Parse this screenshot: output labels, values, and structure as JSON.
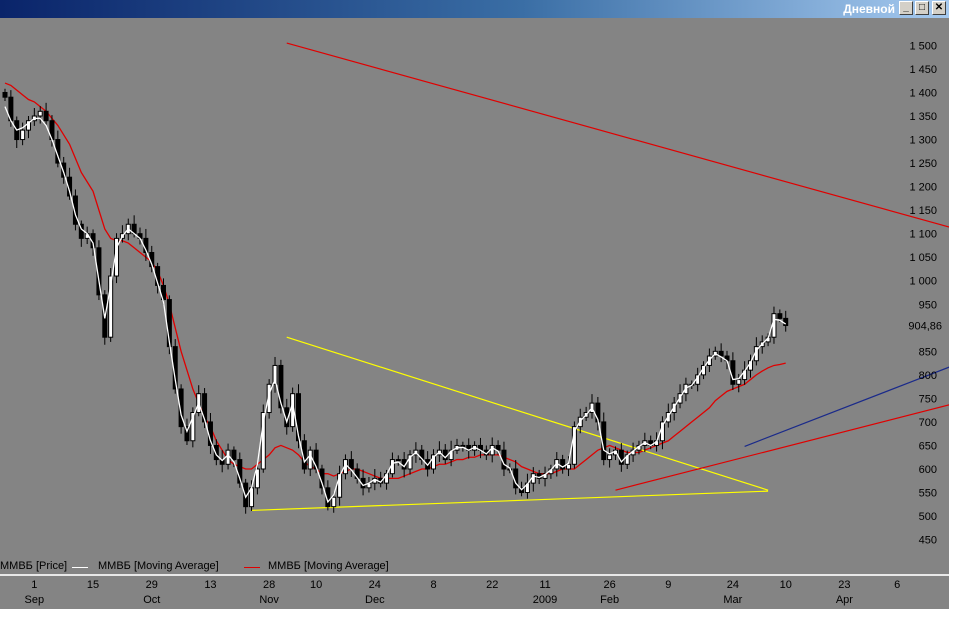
{
  "window": {
    "title": "Дневной",
    "buttons": {
      "minimize": "_",
      "maximize": "□",
      "close": "✕"
    }
  },
  "legend": {
    "price": "ММВБ [Price]",
    "ma_white": "ММВБ [Moving Average]",
    "ma_red": "ММВБ [Moving Average]"
  },
  "colors": {
    "background": "#848484",
    "ma_fast": "#ffffff",
    "ma_slow": "#e00000",
    "trend_yellow": "#ffff00",
    "trend_red": "#e00000",
    "trend_blue": "#1a2a8a"
  },
  "chart_data": {
    "type": "candlestick",
    "ylim": [
      430,
      1520
    ],
    "y_ticks": [
      "1 500",
      "1 450",
      "1 400",
      "1 350",
      "1 300",
      "1 250",
      "1 200",
      "1 150",
      "1 100",
      "1 050",
      "1 000",
      "950",
      "850",
      "800",
      "750",
      "700",
      "650",
      "600",
      "550",
      "500",
      "450"
    ],
    "y_tick_values": [
      1500,
      1450,
      1400,
      1350,
      1300,
      1250,
      1200,
      1150,
      1100,
      1050,
      1000,
      950,
      850,
      800,
      750,
      700,
      650,
      600,
      550,
      500,
      450
    ],
    "last_price_label": "904,86",
    "last_price": 904.86,
    "x_ticks": [
      {
        "day": "1",
        "month": "Sep",
        "i": 5
      },
      {
        "day": "15",
        "month": "",
        "i": 15
      },
      {
        "day": "29",
        "month": "Oct",
        "i": 25
      },
      {
        "day": "13",
        "month": "",
        "i": 35
      },
      {
        "day": "28",
        "month": "Nov",
        "i": 45
      },
      {
        "day": "10",
        "month": "",
        "i": 53
      },
      {
        "day": "24",
        "month": "Dec",
        "i": 63
      },
      {
        "day": "8",
        "month": "",
        "i": 73
      },
      {
        "day": "22",
        "month": "",
        "i": 83
      },
      {
        "day": "11",
        "month": "2009",
        "i": 92
      },
      {
        "day": "26",
        "month": "Feb",
        "i": 103
      },
      {
        "day": "9",
        "month": "",
        "i": 113
      },
      {
        "day": "24",
        "month": "Mar",
        "i": 124
      },
      {
        "day": "10",
        "month": "",
        "i": 133
      },
      {
        "day": "23",
        "month": "Apr",
        "i": 143
      },
      {
        "day": "6",
        "month": "",
        "i": 152
      }
    ],
    "close": [
      1390,
      1340,
      1300,
      1320,
      1340,
      1350,
      1360,
      1340,
      1300,
      1250,
      1220,
      1180,
      1120,
      1090,
      1100,
      1070,
      970,
      880,
      1010,
      1090,
      1100,
      1120,
      1100,
      1090,
      1060,
      1030,
      990,
      960,
      860,
      770,
      690,
      660,
      720,
      760,
      700,
      650,
      620,
      610,
      640,
      620,
      570,
      520,
      560,
      600,
      720,
      780,
      820,
      730,
      690,
      760,
      660,
      600,
      640,
      600,
      560,
      520,
      540,
      590,
      620,
      600,
      580,
      560,
      570,
      580,
      570,
      590,
      620,
      620,
      600,
      630,
      640,
      620,
      600,
      630,
      640,
      620,
      640,
      650,
      650,
      640,
      650,
      640,
      630,
      650,
      640,
      600,
      600,
      560,
      550,
      570,
      590,
      580,
      590,
      600,
      620,
      600,
      610,
      690,
      710,
      720,
      740,
      700,
      620,
      630,
      640,
      610,
      630,
      640,
      650,
      660,
      650,
      660,
      700,
      720,
      740,
      760,
      780,
      780,
      800,
      820,
      840,
      850,
      840,
      830,
      780,
      790,
      810,
      830,
      860,
      870,
      880,
      930,
      920,
      904.86
    ],
    "ma_slow": [
      1420,
      1415,
      1405,
      1395,
      1385,
      1380,
      1370,
      1360,
      1345,
      1330,
      1310,
      1290,
      1260,
      1230,
      1210,
      1190,
      1150,
      1110,
      1090,
      1085,
      1085,
      1080,
      1070,
      1060,
      1050,
      1040,
      1020,
      990,
      950,
      900,
      850,
      810,
      770,
      740,
      710,
      690,
      660,
      640,
      620,
      610,
      605,
      600,
      600,
      610,
      620,
      630,
      645,
      650,
      645,
      640,
      630,
      615,
      605,
      600,
      590,
      590,
      585,
      590,
      595,
      600,
      600,
      595,
      590,
      585,
      580,
      580,
      580,
      580,
      585,
      590,
      595,
      600,
      600,
      605,
      610,
      610,
      615,
      620,
      620,
      625,
      625,
      630,
      630,
      630,
      630,
      625,
      620,
      615,
      605,
      600,
      595,
      590,
      590,
      590,
      595,
      600,
      600,
      600,
      610,
      620,
      630,
      640,
      645,
      650,
      645,
      640,
      635,
      635,
      635,
      640,
      645,
      650,
      655,
      660,
      670,
      680,
      690,
      700,
      710,
      720,
      730,
      745,
      755,
      765,
      770,
      775,
      780,
      790,
      800,
      808,
      815,
      820,
      822,
      825
    ],
    "ma_fast": [
      1370,
      1340,
      1320,
      1325,
      1335,
      1345,
      1345,
      1330,
      1300,
      1265,
      1230,
      1190,
      1140,
      1110,
      1100,
      1080,
      1000,
      920,
      990,
      1070,
      1095,
      1110,
      1100,
      1090,
      1065,
      1035,
      995,
      955,
      870,
      790,
      715,
      680,
      710,
      740,
      705,
      660,
      630,
      618,
      630,
      615,
      580,
      540,
      560,
      610,
      700,
      760,
      790,
      740,
      700,
      740,
      670,
      615,
      630,
      605,
      570,
      530,
      545,
      585,
      610,
      598,
      582,
      565,
      570,
      578,
      572,
      588,
      612,
      615,
      605,
      625,
      635,
      622,
      608,
      625,
      636,
      624,
      638,
      645,
      646,
      640,
      646,
      640,
      632,
      645,
      638,
      610,
      602,
      570,
      556,
      568,
      585,
      582,
      588,
      598,
      612,
      604,
      612,
      680,
      702,
      715,
      730,
      705,
      640,
      632,
      638,
      615,
      628,
      638,
      648,
      656,
      650,
      658,
      692,
      712,
      732,
      752,
      772,
      778,
      795,
      815,
      832,
      845,
      838,
      830,
      790,
      792,
      808,
      826,
      852,
      866,
      878,
      918,
      916,
      908
    ],
    "trendlines": [
      {
        "name": "red-resistance",
        "color": "red",
        "from": [
          48,
          1505
        ],
        "to": [
          162,
          1110
        ]
      },
      {
        "name": "yellow-upper",
        "color": "yellow",
        "from": [
          48,
          880
        ],
        "to": [
          130,
          555
        ]
      },
      {
        "name": "yellow-lower",
        "color": "yellow",
        "from": [
          42,
          512
        ],
        "to": [
          130,
          553
        ]
      },
      {
        "name": "red-support",
        "color": "red",
        "from": [
          104,
          555
        ],
        "to": [
          162,
          740
        ]
      },
      {
        "name": "blue-support",
        "color": "blue",
        "from": [
          126,
          648
        ],
        "to": [
          162,
          822
        ]
      }
    ]
  }
}
